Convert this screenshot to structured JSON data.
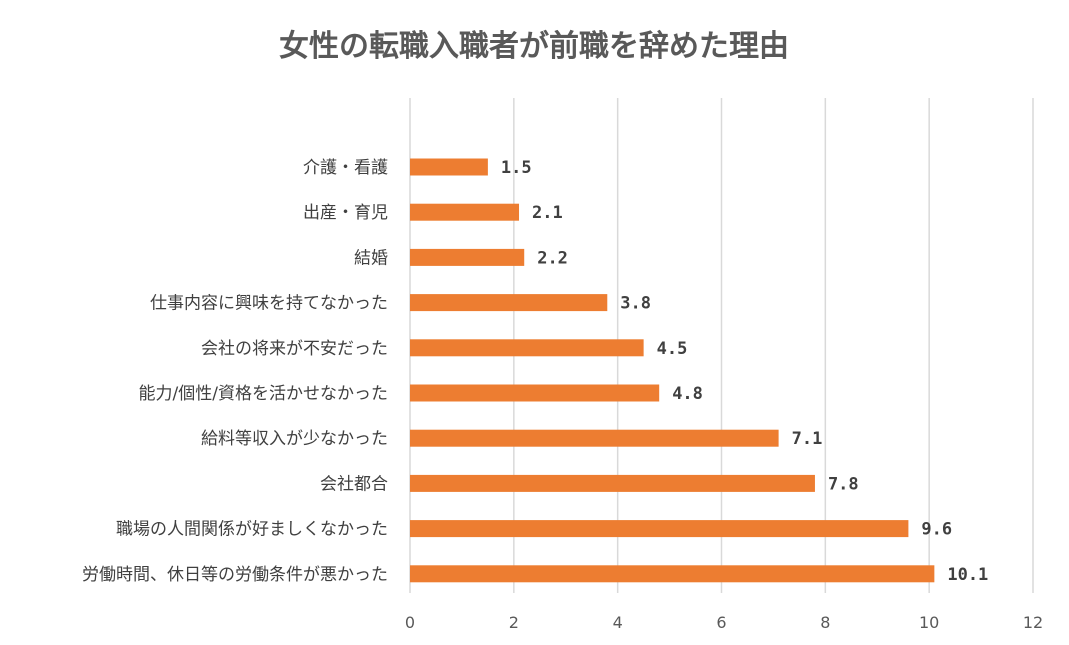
{
  "chart_data": {
    "type": "bar",
    "orientation": "horizontal",
    "title": "女性の転職入職者が前職を辞めた理由",
    "categories": [
      "介護・看護",
      "出産・育児",
      "結婚",
      "仕事内容に興味を持てなかった",
      "会社の将来が不安だった",
      "能力/個性/資格を活かせなかった",
      "給料等収入が少なかった",
      "会社都合",
      "職場の人間関係が好ましくなかった",
      "労働時間、休日等の労働条件が悪かった"
    ],
    "values": [
      1.5,
      2.1,
      2.2,
      3.8,
      4.5,
      4.8,
      7.1,
      7.8,
      9.6,
      10.1
    ],
    "data_labels": [
      "1.5",
      "2.1",
      "2.2",
      "3.8",
      "4.5",
      "4.8",
      "7.1",
      "7.8",
      "9.6",
      "10.1"
    ],
    "xlim": [
      0,
      12
    ],
    "x_ticks": [
      0,
      2,
      4,
      6,
      8,
      10,
      12
    ],
    "x_tick_labels": [
      "0",
      "2",
      "4",
      "6",
      "8",
      "10",
      "12"
    ],
    "xlabel": "",
    "ylabel": "",
    "grid": true,
    "legend": "none",
    "bar_color": "#ED7D31",
    "grid_color": "#D9D9D9",
    "title_color": "#595959",
    "label_color": "#404040"
  }
}
